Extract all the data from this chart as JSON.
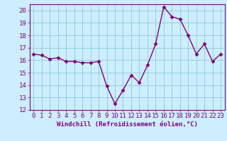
{
  "x": [
    0,
    1,
    2,
    3,
    4,
    5,
    6,
    7,
    8,
    9,
    10,
    11,
    12,
    13,
    14,
    15,
    16,
    17,
    18,
    19,
    20,
    21,
    22,
    23
  ],
  "y": [
    16.5,
    16.4,
    16.1,
    16.2,
    15.9,
    15.9,
    15.8,
    15.8,
    15.9,
    13.9,
    12.5,
    13.6,
    14.8,
    14.2,
    15.6,
    17.3,
    20.3,
    19.5,
    19.3,
    18.0,
    16.5,
    17.3,
    15.9,
    16.5
  ],
  "line_color": "#800080",
  "marker": "D",
  "marker_size": 2.5,
  "background_color": "#cceeff",
  "grid_color": "#99ccdd",
  "xlabel": "Windchill (Refroidissement éolien,°C)",
  "ylim": [
    12,
    20.5
  ],
  "xlim_left": -0.5,
  "xlim_right": 23.5,
  "yticks": [
    12,
    13,
    14,
    15,
    16,
    17,
    18,
    19,
    20
  ],
  "xticks": [
    0,
    1,
    2,
    3,
    4,
    5,
    6,
    7,
    8,
    9,
    10,
    11,
    12,
    13,
    14,
    15,
    16,
    17,
    18,
    19,
    20,
    21,
    22,
    23
  ],
  "xlabel_fontsize": 6.5,
  "tick_fontsize": 6.5,
  "line_width": 1.0
}
